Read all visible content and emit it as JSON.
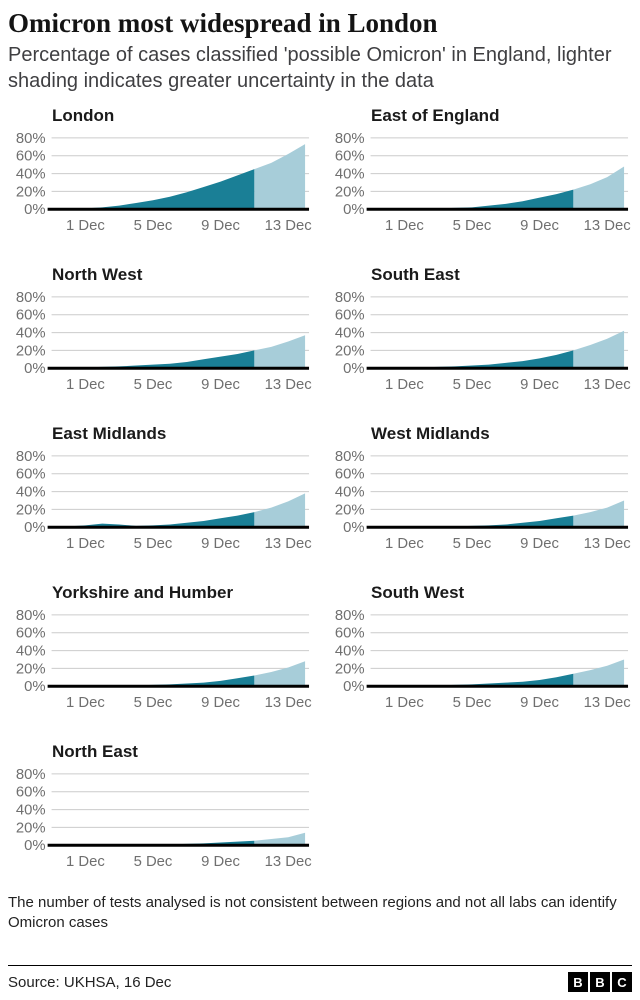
{
  "header": {
    "title": "Omicron most widespread in London",
    "subtitle": "Percentage of cases classified 'possible Omicron' in England, lighter shading indicates greater uncertainty in the data"
  },
  "chart_data": {
    "type": "area",
    "x_dates": [
      "29 Nov",
      "30 Nov",
      "1 Dec",
      "2 Dec",
      "3 Dec",
      "4 Dec",
      "5 Dec",
      "6 Dec",
      "7 Dec",
      "8 Dec",
      "9 Dec",
      "10 Dec",
      "11 Dec",
      "12 Dec",
      "13 Dec",
      "14 Dec"
    ],
    "x_ticks": [
      {
        "index": 2,
        "label": "1 Dec"
      },
      {
        "index": 6,
        "label": "5 Dec"
      },
      {
        "index": 10,
        "label": "9 Dec"
      },
      {
        "index": 14,
        "label": "13 Dec"
      }
    ],
    "y_ticks": [
      0,
      20,
      40,
      60,
      80
    ],
    "y_tick_labels": [
      "0%",
      "20%",
      "40%",
      "60%",
      "80%"
    ],
    "ylim": [
      0,
      88
    ],
    "grid": true,
    "colors": {
      "confirmed": "#1a7f96",
      "uncertain": "#a7cdd9",
      "baseline": "#000000",
      "gridline": "#cccccc"
    },
    "legend_note": "lighter shading = greater uncertainty",
    "regions": [
      {
        "name": "London",
        "uncertain_from": 12,
        "values": [
          0,
          0.5,
          1,
          2,
          4,
          7,
          10,
          14,
          19,
          25,
          31,
          38,
          45,
          52,
          62,
          73
        ]
      },
      {
        "name": "East of England",
        "uncertain_from": 12,
        "values": [
          0,
          0,
          0.5,
          0.5,
          1,
          1.5,
          2,
          4,
          6,
          9,
          13,
          17,
          22,
          28,
          36,
          48
        ]
      },
      {
        "name": "North West",
        "uncertain_from": 12,
        "values": [
          0,
          0.5,
          1,
          1.5,
          2,
          3,
          4,
          5,
          7,
          10,
          13,
          16,
          20,
          24,
          30,
          37
        ]
      },
      {
        "name": "South East",
        "uncertain_from": 12,
        "values": [
          0,
          0,
          0.5,
          1,
          1.5,
          2,
          3,
          4,
          6,
          8,
          11,
          15,
          20,
          26,
          33,
          42
        ]
      },
      {
        "name": "East Midlands",
        "uncertain_from": 12,
        "values": [
          0,
          1,
          2,
          4,
          3,
          1.5,
          2,
          3,
          5,
          7,
          10,
          13,
          17,
          22,
          29,
          38
        ]
      },
      {
        "name": "West Midlands",
        "uncertain_from": 12,
        "values": [
          0,
          0,
          0.5,
          0.5,
          1,
          1,
          1.5,
          2,
          3,
          5,
          7,
          10,
          13,
          17,
          22,
          30
        ]
      },
      {
        "name": "Yorkshire and Humber",
        "uncertain_from": 12,
        "values": [
          0,
          0,
          0.5,
          0.5,
          1,
          1,
          1.5,
          2,
          3,
          4,
          6,
          9,
          12,
          16,
          21,
          28
        ]
      },
      {
        "name": "South West",
        "uncertain_from": 12,
        "values": [
          0,
          0,
          0.5,
          1,
          1,
          1.5,
          2,
          3,
          4,
          5,
          7,
          10,
          14,
          18,
          23,
          30
        ]
      },
      {
        "name": "North East",
        "uncertain_from": 12,
        "values": [
          0,
          0,
          0,
          0.5,
          0.5,
          0.5,
          1,
          1,
          1.5,
          2,
          3,
          4,
          5,
          7,
          9,
          14
        ]
      }
    ]
  },
  "footer": {
    "note": "The number of tests analysed is not consistent between regions and not all labs can identify Omicron cases",
    "source": "Source: UKHSA, 16 Dec",
    "logo_letters": [
      "B",
      "B",
      "C"
    ]
  }
}
